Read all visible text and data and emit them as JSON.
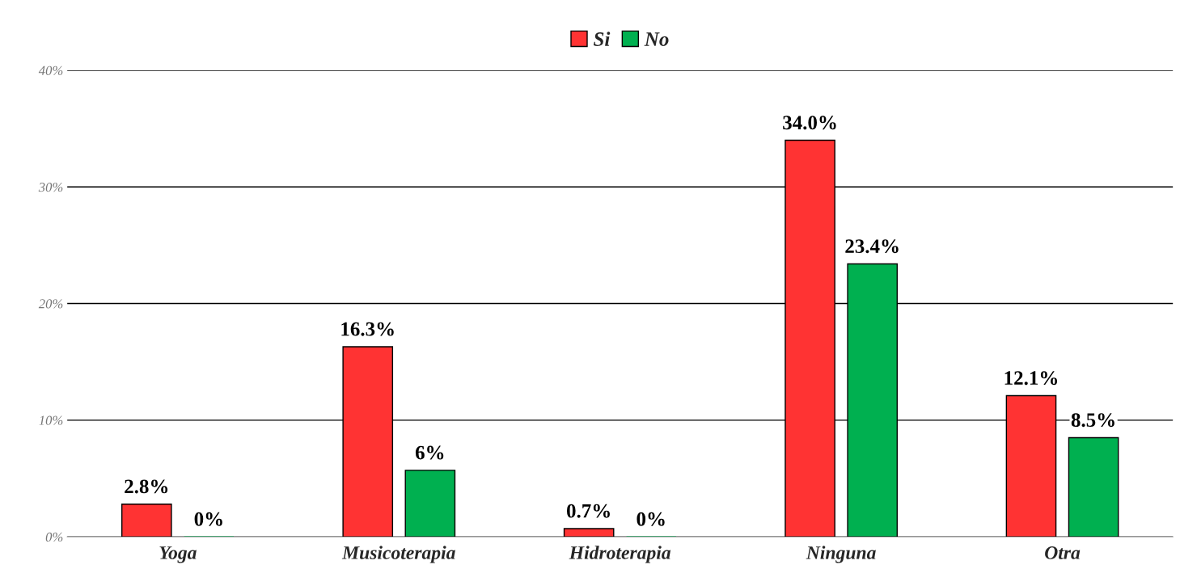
{
  "chart_data": {
    "type": "bar",
    "categories": [
      "Yoga",
      "Musicoterapia",
      "Hidroterapia",
      "Ninguna",
      "Otra"
    ],
    "series": [
      {
        "name": "Si",
        "color": "#ff3333",
        "values": [
          2.8,
          16.3,
          0.7,
          34.0,
          12.1
        ],
        "value_labels": [
          "2.8%",
          "16.3%",
          "0.7%",
          "34.0%",
          "12.1%"
        ]
      },
      {
        "name": "No",
        "color": "#00b050",
        "values": [
          0,
          5.7,
          0,
          23.4,
          8.5
        ],
        "value_labels": [
          "0%",
          "6%",
          "0%",
          "23.4%",
          "8.5%"
        ]
      }
    ],
    "ylim": [
      0,
      40
    ],
    "yticks": [
      {
        "value": 0,
        "label": "0%"
      },
      {
        "value": 10,
        "label": "10%"
      },
      {
        "value": 20,
        "label": "20%"
      },
      {
        "value": 30,
        "label": "30%"
      },
      {
        "value": 40,
        "label": "40%"
      }
    ],
    "grid": "y",
    "legend": "top"
  }
}
